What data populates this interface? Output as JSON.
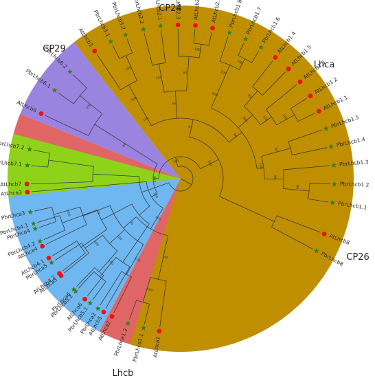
{
  "clades": [
    {
      "id": "lhca",
      "label": "Lhca",
      "color": "#e06666",
      "start": 96,
      "end": 202
    },
    {
      "id": "cp26",
      "label": "CP26",
      "color": "#9b84e0",
      "start": 202,
      "end": 232
    },
    {
      "id": "lhcb",
      "label": "Lhcb",
      "color": "#bf8f00",
      "start": 232,
      "end": 467
    },
    {
      "id": "cp29",
      "label": "CP29",
      "color": "#6fb7f0",
      "start": 478,
      "end": 534
    },
    {
      "id": "cp24",
      "label": "CP24",
      "color": "#8fd21a",
      "start": 534,
      "end": 555
    }
  ],
  "leaves": [
    {
      "name": "AtLhca1",
      "marker": "circle",
      "angle": 98
    },
    {
      "name": "PbrLhca1.1",
      "marker": "star",
      "angle": 104
    },
    {
      "name": "PbrLhca1.2",
      "marker": "star",
      "angle": 110
    },
    {
      "name": "AtLhca2",
      "marker": "circle",
      "angle": 116.5
    },
    {
      "name": "PbrLhca2",
      "marker": "star",
      "angle": 122.5
    },
    {
      "name": "AtLhca6",
      "marker": "circle",
      "angle": 128.5
    },
    {
      "name": "PbrLhca6",
      "marker": "star",
      "angle": 134
    },
    {
      "name": "AtLhca5",
      "marker": "circle",
      "angle": 141
    },
    {
      "name": "PbrLhca5",
      "marker": "star",
      "angle": 147
    },
    {
      "name": "AtLhca4",
      "marker": "circle",
      "angle": 154
    },
    {
      "name": "PbrLhca4",
      "marker": "star",
      "angle": 161
    },
    {
      "name": "PbrLhca3",
      "marker": "star",
      "angle": 167.5
    },
    {
      "name": "AtLhca3",
      "marker": "circle",
      "angle": 175
    },
    {
      "name": "AtLhcb6",
      "marker": "circle",
      "angle": 205
    },
    {
      "name": "PbrLhcb6.1",
      "marker": "star",
      "angle": 215
    },
    {
      "name": "PbrLhcb6.2",
      "marker": "star",
      "angle": 224
    },
    {
      "name": "AtLhcb3",
      "marker": "circle",
      "angle": 236
    },
    {
      "name": "PbrLhcb3.1",
      "marker": "star",
      "angle": 243
    },
    {
      "name": "PbrLhcb3.2",
      "marker": "star",
      "angle": 249
    },
    {
      "name": "PbrLhcb2.2",
      "marker": "star",
      "angle": 256
    },
    {
      "name": "PbrLhcb2.1",
      "marker": "star",
      "angle": 262.5
    },
    {
      "name": "AtLhcb2.3",
      "marker": "circle",
      "angle": 269
    },
    {
      "name": "AtLhcb2.2",
      "marker": "circle",
      "angle": 275.5
    },
    {
      "name": "AtLhcb2.1",
      "marker": "circle",
      "angle": 282
    },
    {
      "name": "PbrLhcb1.8",
      "marker": "star",
      "angle": 288.5
    },
    {
      "name": "PbrLhcb1.7",
      "marker": "star",
      "angle": 295
    },
    {
      "name": "PbrLhcb1.6",
      "marker": "star",
      "angle": 301.5
    },
    {
      "name": "AtLhcb1.4",
      "marker": "circle",
      "angle": 308
    },
    {
      "name": "AtLhcb1.5",
      "marker": "circle",
      "angle": 314.5
    },
    {
      "name": "AtLhcb1.3",
      "marker": "circle",
      "angle": 321
    },
    {
      "name": "AtLhcb1.2",
      "marker": "circle",
      "angle": 327.5
    },
    {
      "name": "AtLhcb1.1",
      "marker": "circle",
      "angle": 334
    },
    {
      "name": "PbrLhcb1.5",
      "marker": "star",
      "angle": 341
    },
    {
      "name": "PbrLhcb1.4",
      "marker": "star",
      "angle": 348
    },
    {
      "name": "PbrLhcb1.3",
      "marker": "star",
      "angle": 355
    },
    {
      "name": "PbrLhcb1.2",
      "marker": "star",
      "angle": 362
    },
    {
      "name": "PbrLhcb1.1",
      "marker": "star",
      "angle": 369
    },
    {
      "name": "AtLhcb8",
      "marker": "circle",
      "angle": 381
    },
    {
      "name": "PbrLhcb8",
      "marker": "star",
      "angle": 388
    },
    {
      "name": "AtLhcb5",
      "marker": "circle",
      "angle": 480
    },
    {
      "name": "PbrLhcb5.1",
      "marker": "star",
      "angle": 486
    },
    {
      "name": "PbrLhcb5.2",
      "marker": "star",
      "angle": 493
    },
    {
      "name": "AtLhcb4.2",
      "marker": "circle",
      "angle": 502
    },
    {
      "name": "AtLhcb4.1",
      "marker": "circle",
      "angle": 509
    },
    {
      "name": "PbrLhcb4.2",
      "marker": "star",
      "angle": 516
    },
    {
      "name": "PbrLhcb4.1",
      "marker": "star",
      "angle": 523
    },
    {
      "name": "AtLhcb7",
      "marker": "circle",
      "angle": 538
    },
    {
      "name": "PbrLhcb7.1",
      "marker": "star",
      "angle": 545
    },
    {
      "name": "PbrLhcb7.2",
      "marker": "star",
      "angle": 551
    }
  ],
  "bootstrap": [
    "100",
    "100",
    "100",
    "100",
    "100",
    "100",
    "95",
    "100",
    "100",
    "100",
    "100",
    "97",
    "100",
    "88",
    "100",
    "100",
    "99",
    "100",
    "100",
    "100",
    "95",
    "100",
    "91",
    "100",
    "96",
    "100",
    "100",
    "100",
    "100",
    "99",
    "100",
    "100",
    "100",
    "84",
    "98",
    "80"
  ],
  "markers": {
    "circle_color": "#ee1111",
    "star_color": "#3a7d28"
  }
}
